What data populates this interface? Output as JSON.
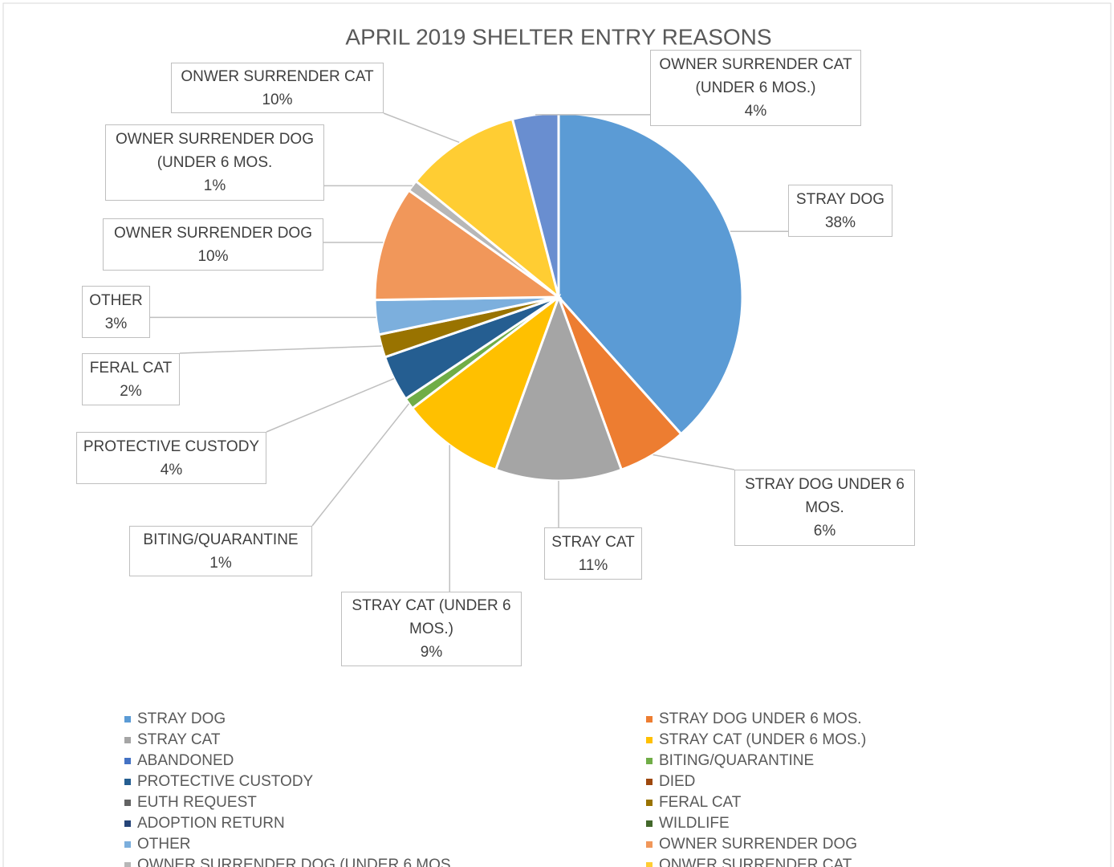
{
  "chart_data": {
    "type": "pie",
    "title": "APRIL 2019 SHELTER ENTRY REASONS",
    "categories": [
      "STRAY DOG",
      "STRAY DOG UNDER 6 MOS.",
      "STRAY CAT",
      "STRAY CAT (UNDER 6 MOS.)",
      "ABANDONED",
      "BITING/QUARANTINE",
      "PROTECTIVE CUSTODY",
      "DIED",
      "EUTH REQUEST",
      "FERAL CAT",
      "ADOPTION RETURN",
      "WILDLIFE",
      "OTHER",
      "OWNER SURRENDER DOG",
      "OWNER SURRENDER DOG (UNDER 6 MOS.",
      "ONWER SURRENDER CAT",
      "OWNER SURRENDER CAT (UNDER 6 MOS.)"
    ],
    "values": [
      38,
      6,
      11,
      9,
      0,
      1,
      4,
      0,
      0,
      2,
      0,
      0,
      3,
      10,
      1,
      10,
      4
    ],
    "value_labels": [
      "38%",
      "6%",
      "11%",
      "9%",
      null,
      "1%",
      "4%",
      null,
      null,
      "2%",
      null,
      null,
      "3%",
      "10%",
      "1%",
      "10%",
      "4%"
    ],
    "colors": [
      "#5b9bd5",
      "#ed7d31",
      "#a5a5a5",
      "#ffc000",
      "#4472c4",
      "#70ad47",
      "#255e91",
      "#9e480e",
      "#636363",
      "#997300",
      "#264478",
      "#43682b",
      "#7cafdd",
      "#f1975a",
      "#b7b7b7",
      "#ffcd33",
      "#698ed0"
    ],
    "legend": "bottom"
  }
}
